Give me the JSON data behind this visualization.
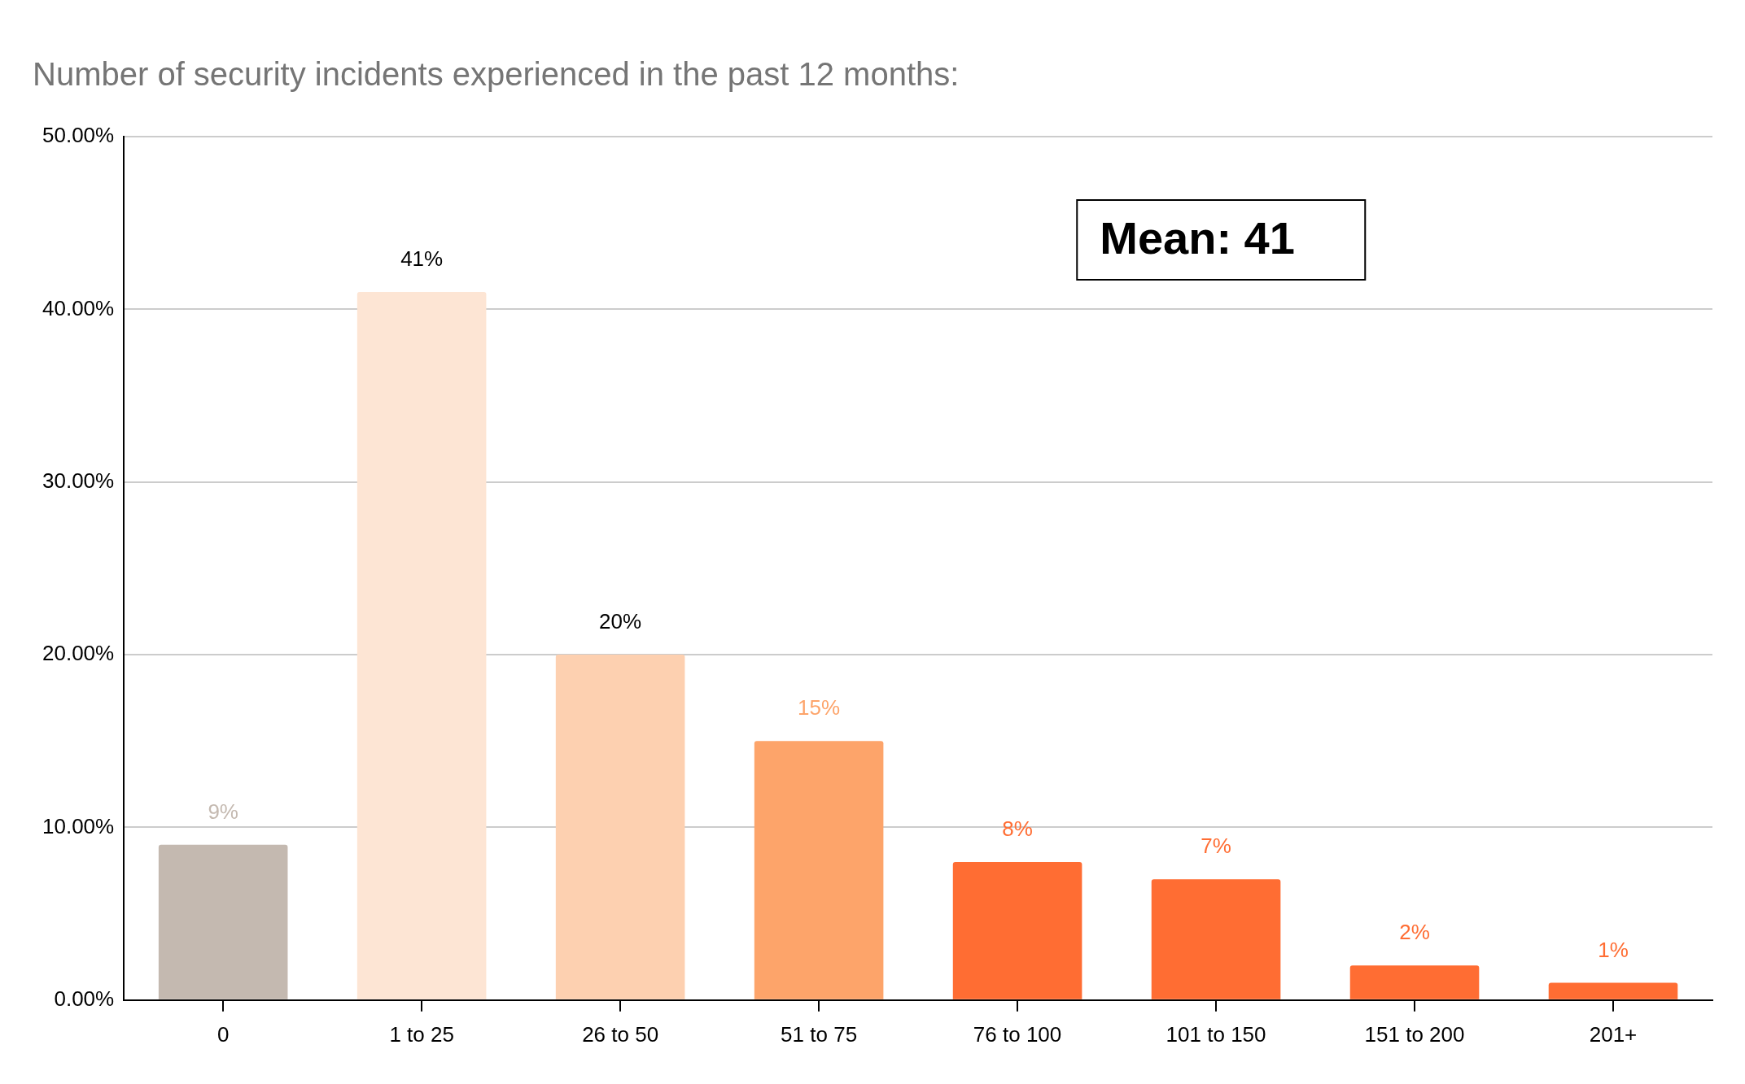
{
  "chart_data": {
    "type": "bar",
    "title": "Number of security incidents experienced in the past 12 months:",
    "categories": [
      "0",
      "1 to 25",
      "26 to 50",
      "51 to 75",
      "76 to 100",
      "101 to 150",
      "151 to 200",
      "201+"
    ],
    "values": [
      9,
      41,
      20,
      15,
      8,
      7,
      2,
      1
    ],
    "colors": [
      "#c4b9b0",
      "#fde5d4",
      "#fdd0b0",
      "#fda46a",
      "#ff6d33",
      "#ff6d33",
      "#ff6d33",
      "#ff6d33"
    ],
    "value_labels": [
      "9%",
      "41%",
      "20%",
      "15%",
      "8%",
      "7%",
      "2%",
      "1%"
    ],
    "ylim": [
      0,
      50
    ],
    "yticks": [
      {
        "value": 0,
        "label": "0.00%"
      },
      {
        "value": 10,
        "label": "10.00%"
      },
      {
        "value": 20,
        "label": "20.00%"
      },
      {
        "value": 30,
        "label": "30.00%"
      },
      {
        "value": 40,
        "label": "40.00%"
      },
      {
        "value": 50,
        "label": "50.00%"
      }
    ],
    "grid": "y",
    "legend": false,
    "annotations": [
      "Mean: 41"
    ]
  }
}
